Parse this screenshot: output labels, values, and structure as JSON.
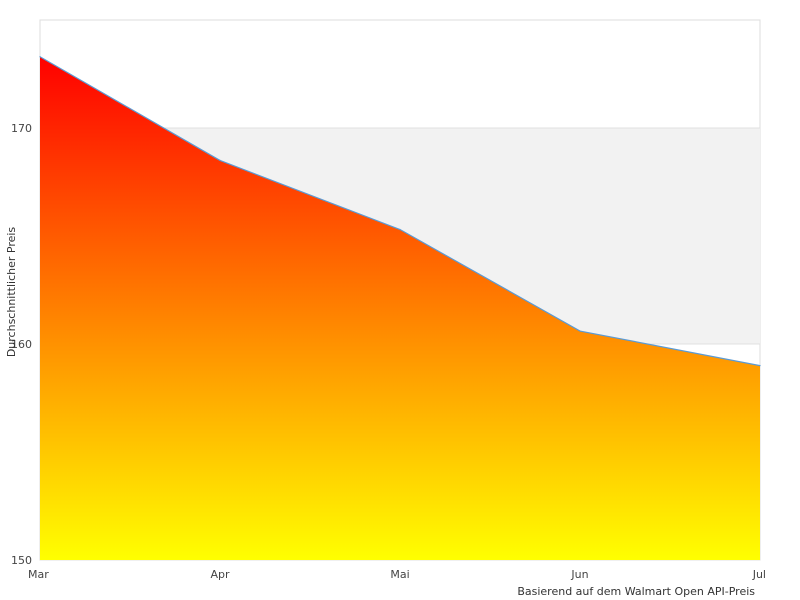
{
  "chart_data": {
    "type": "area",
    "categories": [
      "Mar",
      "Apr",
      "Mai",
      "Jun",
      "Jul"
    ],
    "series": [
      {
        "values": [
          173.3,
          168.5,
          165.3,
          160.6,
          159.0
        ]
      }
    ],
    "ylabel": "Durchschnittlicher Preis",
    "xlabel": "",
    "ylim": [
      150,
      175
    ],
    "y_ticks": [
      150,
      160,
      170
    ],
    "plot_bands": [
      {
        "from": 160,
        "to": 170,
        "color": "#f2f2f2"
      }
    ],
    "grid": true,
    "legend": "none",
    "fill_gradient": {
      "top": "#ff0000",
      "bottom": "#ffff00"
    },
    "line_color": "#5b9bd5",
    "source_note": "Basierend auf dem Walmart Open API-Preis"
  }
}
